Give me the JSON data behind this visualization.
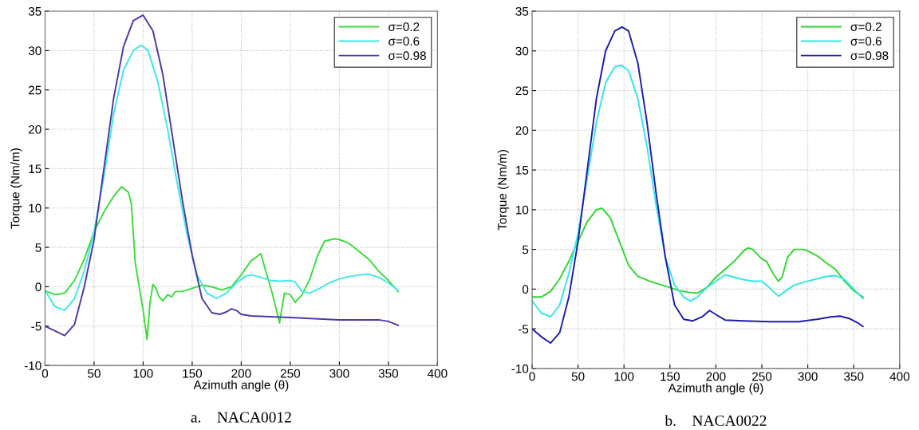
{
  "chart_data": [
    {
      "type": "line",
      "title": "a.    NACA0012",
      "xlabel": "Azimuth angle (θ)",
      "ylabel": "Torque (Nm/m)",
      "xlim": [
        0,
        400
      ],
      "ylim": [
        -10,
        35
      ],
      "xticks": [
        0,
        50,
        100,
        150,
        200,
        250,
        300,
        350,
        400
      ],
      "yticks": [
        -10,
        -5,
        0,
        5,
        10,
        15,
        20,
        25,
        30,
        35
      ],
      "grid": true,
      "legend": "top right",
      "line_style": "solid",
      "marker": "none",
      "series": [
        {
          "name": "σ=0.2",
          "color": "#3ddc3d",
          "x": [
            0,
            10,
            20,
            30,
            40,
            50,
            60,
            70,
            78,
            85,
            88,
            92,
            96,
            100,
            104,
            107,
            110,
            113,
            116,
            120,
            125,
            129,
            133,
            140,
            150,
            160,
            170,
            180,
            190,
            200,
            210,
            220,
            225,
            232,
            239,
            244,
            250,
            255,
            262,
            270,
            278,
            285,
            295,
            300,
            310,
            320,
            330,
            340,
            350,
            360
          ],
          "values": [
            -0.5,
            -1,
            -0.8,
            0.8,
            3.5,
            7,
            9.5,
            11.5,
            12.7,
            12,
            10.5,
            3,
            0,
            -3,
            -6.7,
            -2,
            0.3,
            -0.2,
            -1.2,
            -1.8,
            -1,
            -1.3,
            -0.6,
            -0.6,
            -0.2,
            0.2,
            0,
            -0.4,
            0,
            1.5,
            3.3,
            4.2,
            2,
            -1,
            -4.6,
            -0.8,
            -1,
            -2,
            -1,
            1,
            4,
            5.8,
            6.1,
            6,
            5.5,
            4.5,
            3.5,
            2,
            0.8,
            -0.6
          ]
        },
        {
          "name": "σ=0.6",
          "color": "#3ee8e8",
          "x": [
            0,
            10,
            20,
            30,
            40,
            50,
            60,
            70,
            80,
            90,
            98,
            105,
            115,
            125,
            135,
            145,
            155,
            165,
            175,
            185,
            195,
            205,
            210,
            220,
            230,
            240,
            250,
            255,
            262,
            270,
            280,
            290,
            300,
            310,
            320,
            330,
            340,
            350,
            360
          ],
          "values": [
            -0.5,
            -2.5,
            -3,
            -1.5,
            2,
            7,
            14,
            22,
            27.5,
            30,
            30.7,
            30,
            26,
            20,
            13,
            6.5,
            1.5,
            -0.8,
            -1.5,
            -0.8,
            0.5,
            1.4,
            1.5,
            1.2,
            0.8,
            0.7,
            0.8,
            0.6,
            -0.6,
            -0.8,
            -0.2,
            0.5,
            1,
            1.3,
            1.5,
            1.6,
            1.2,
            0.5,
            -0.5
          ]
        },
        {
          "name": "σ=0.98",
          "color": "#4a3aa8",
          "x": [
            0,
            10,
            20,
            30,
            40,
            50,
            60,
            70,
            80,
            90,
            100,
            110,
            120,
            130,
            140,
            150,
            160,
            170,
            178,
            185,
            190,
            195,
            200,
            210,
            250,
            300,
            340,
            350,
            360
          ],
          "values": [
            -5,
            -5.6,
            -6.2,
            -4.8,
            0,
            6,
            15,
            24,
            30.5,
            33.8,
            34.5,
            32.5,
            27,
            19,
            11,
            4,
            -1.5,
            -3.3,
            -3.5,
            -3.2,
            -2.8,
            -3,
            -3.5,
            -3.7,
            -3.9,
            -4.2,
            -4.2,
            -4.4,
            -4.9
          ]
        }
      ]
    },
    {
      "type": "line",
      "title": "b.    NACA0022",
      "xlabel": "Azimuth angle (θ)",
      "ylabel": "Torque (Nm/m)",
      "xlim": [
        0,
        400
      ],
      "ylim": [
        -10,
        35
      ],
      "xticks": [
        0,
        50,
        100,
        150,
        200,
        250,
        300,
        350,
        400
      ],
      "yticks": [
        -10,
        -5,
        0,
        5,
        10,
        15,
        20,
        25,
        30,
        35
      ],
      "grid": true,
      "legend": "top right",
      "line_style": "solid",
      "marker": "none",
      "series": [
        {
          "name": "σ=0.2",
          "color": "#2fd62f",
          "x": [
            0,
            10,
            20,
            30,
            40,
            50,
            60,
            70,
            76,
            85,
            95,
            105,
            115,
            130,
            150,
            160,
            170,
            180,
            190,
            200,
            210,
            220,
            230,
            235,
            240,
            250,
            255,
            262,
            268,
            272,
            278,
            285,
            295,
            300,
            310,
            320,
            330,
            340,
            350,
            360
          ],
          "values": [
            -1,
            -1,
            -0.3,
            1.3,
            3.5,
            6,
            8.5,
            10,
            10.2,
            9,
            6,
            3,
            1.6,
            0.9,
            0.2,
            -0.2,
            -0.4,
            -0.5,
            0.2,
            1.5,
            2.5,
            3.5,
            4.8,
            5.2,
            5,
            3.8,
            3.5,
            2,
            1,
            1.5,
            4,
            5,
            5,
            4.8,
            4.2,
            3.3,
            2.5,
            1,
            -0.2,
            -1
          ]
        },
        {
          "name": "σ=0.6",
          "color": "#33e6e6",
          "x": [
            0,
            10,
            20,
            30,
            40,
            50,
            60,
            70,
            80,
            90,
            97,
            105,
            115,
            125,
            135,
            145,
            155,
            165,
            172,
            180,
            190,
            200,
            210,
            220,
            230,
            240,
            250,
            258,
            268,
            275,
            285,
            300,
            310,
            320,
            330,
            340,
            350,
            360
          ],
          "values": [
            -1.5,
            -3,
            -3.5,
            -2,
            2,
            7,
            14,
            21,
            26,
            28,
            28.2,
            27.5,
            24,
            18,
            10.5,
            4,
            0.5,
            -1,
            -1.5,
            -1,
            0.2,
            1,
            1.8,
            1.5,
            1.2,
            1,
            1,
            0.2,
            -0.9,
            -0.3,
            0.5,
            1,
            1.3,
            1.6,
            1.7,
            1.2,
            0,
            -1.2
          ]
        },
        {
          "name": "σ=0.98",
          "color": "#1c1cad",
          "x": [
            0,
            10,
            20,
            30,
            40,
            50,
            60,
            70,
            80,
            90,
            98,
            105,
            115,
            125,
            135,
            145,
            155,
            165,
            175,
            185,
            193,
            200,
            210,
            230,
            260,
            290,
            310,
            325,
            335,
            345,
            355,
            360
          ],
          "values": [
            -5,
            -6,
            -6.8,
            -5.5,
            -1,
            6,
            15,
            24,
            30,
            32.5,
            33,
            32.5,
            28.5,
            21,
            12,
            4,
            -2,
            -3.8,
            -4,
            -3.5,
            -2.7,
            -3.2,
            -3.9,
            -4,
            -4.1,
            -4.1,
            -3.8,
            -3.5,
            -3.4,
            -3.7,
            -4.3,
            -4.7
          ]
        }
      ]
    }
  ]
}
